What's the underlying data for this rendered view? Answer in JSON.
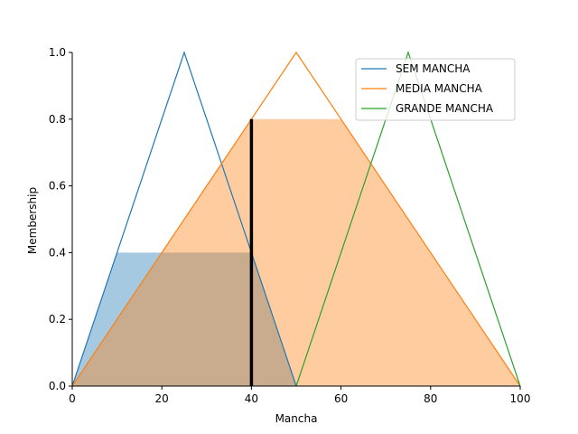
{
  "chart_data": {
    "type": "area",
    "title": "",
    "xlabel": "Mancha",
    "ylabel": "Membership",
    "xlim": [
      0,
      100
    ],
    "ylim": [
      0,
      1.0
    ],
    "xticks": [
      "0",
      "20",
      "40",
      "60",
      "80",
      "100"
    ],
    "yticks": [
      "0.0",
      "0.2",
      "0.4",
      "0.6",
      "0.8",
      "1.0"
    ],
    "grid": false,
    "legend_position": "top-right",
    "series": [
      {
        "name": "SEM MANCHA",
        "color": "#1f77b4",
        "x": [
          0,
          25,
          50
        ],
        "y": [
          0,
          1,
          0
        ]
      },
      {
        "name": "MEDIA MANCHA",
        "color": "#ff7f0e",
        "x": [
          0,
          50,
          100
        ],
        "y": [
          0,
          1,
          0
        ]
      },
      {
        "name": "GRANDE MANCHA",
        "color": "#2ca02c",
        "x": [
          50,
          75,
          100
        ],
        "y": [
          0,
          1,
          0
        ]
      }
    ],
    "activations": [
      {
        "series": "SEM MANCHA",
        "level": 0.4,
        "color": "#1f77b4"
      },
      {
        "series": "MEDIA MANCHA",
        "level": 0.8,
        "color": "#ff7f0e"
      }
    ],
    "marker": {
      "x": 40,
      "y": 0.8,
      "color": "#000000"
    }
  }
}
